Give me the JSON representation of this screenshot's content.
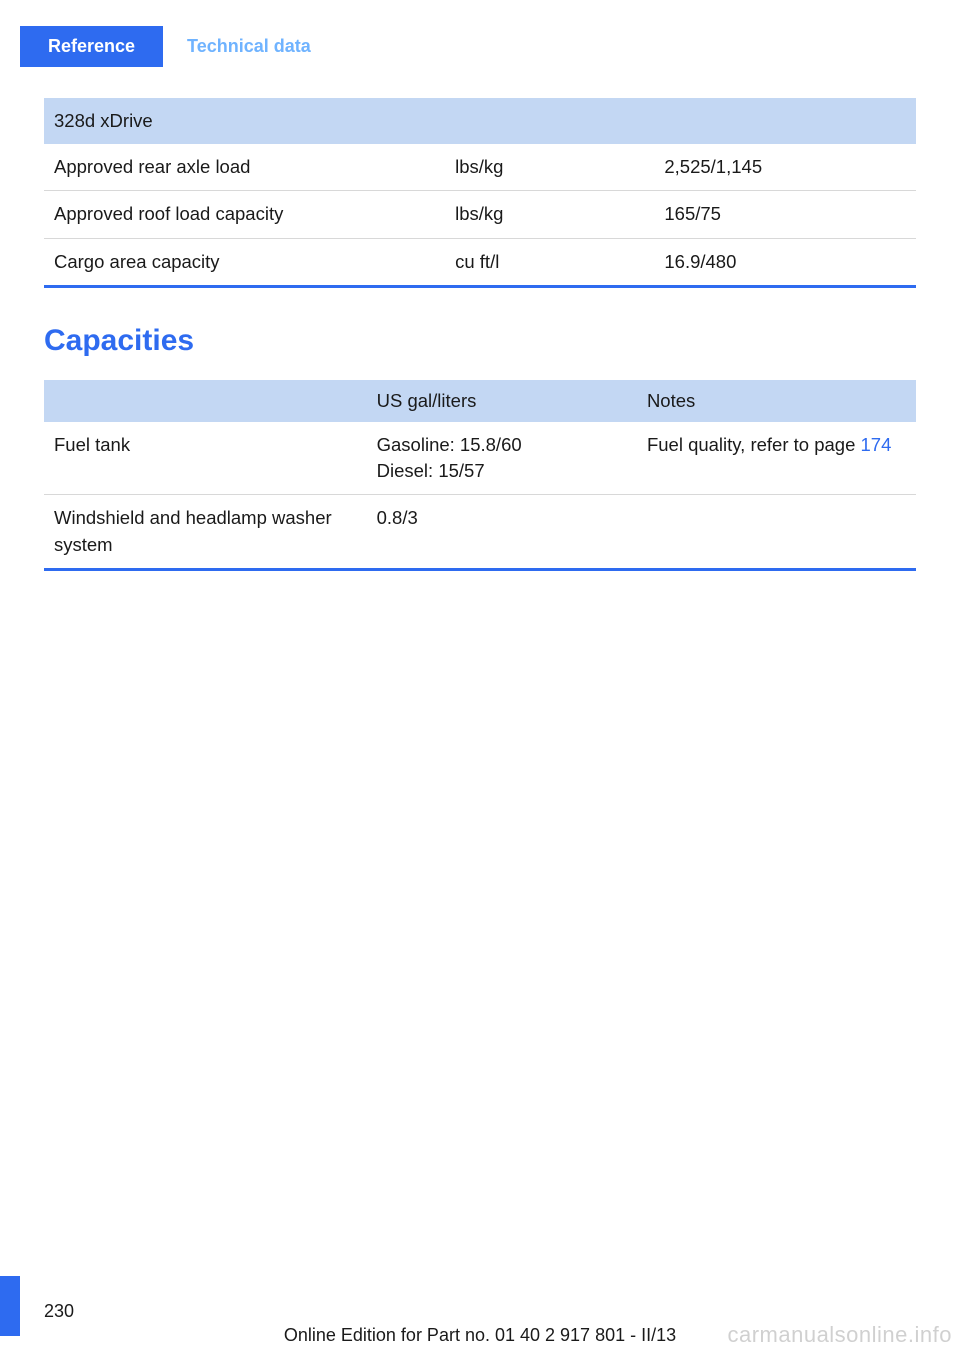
{
  "header": {
    "active_tab": "Reference",
    "inactive_tab": "Technical data"
  },
  "table1": {
    "header_span": "328d xDrive",
    "rows": [
      {
        "label": "Approved rear axle load",
        "unit": "lbs/kg",
        "value": "2,525/1,145"
      },
      {
        "label": "Approved roof load capacity",
        "unit": "lbs/kg",
        "value": "165/75"
      },
      {
        "label": "Cargo area capacity",
        "unit": "cu ft/l",
        "value": "16.9/480"
      }
    ]
  },
  "section_title": "Capacities",
  "table2": {
    "headers": {
      "c1": "",
      "c2": "US gal/liters",
      "c3": "Notes"
    },
    "rows": [
      {
        "label": "Fuel tank",
        "value_line1": "Gasoline: 15.8/60",
        "value_line2": "Diesel: 15/57",
        "note_prefix": "Fuel quality, refer to page ",
        "note_link": "174"
      },
      {
        "label": "Windshield and headlamp washer system",
        "value": "0.8/3",
        "note": ""
      }
    ]
  },
  "page_number": "230",
  "footer_edition": "Online Edition for Part no. 01 40 2 917 801 - II/13",
  "watermark": "carmanualsonline.info",
  "colors": {
    "brand_blue": "#2e6bf0",
    "header_bg": "#c3d7f3",
    "inactive_blue": "#6fb3ff",
    "row_border": "#d8d8d8",
    "text": "#1a1a1a"
  }
}
